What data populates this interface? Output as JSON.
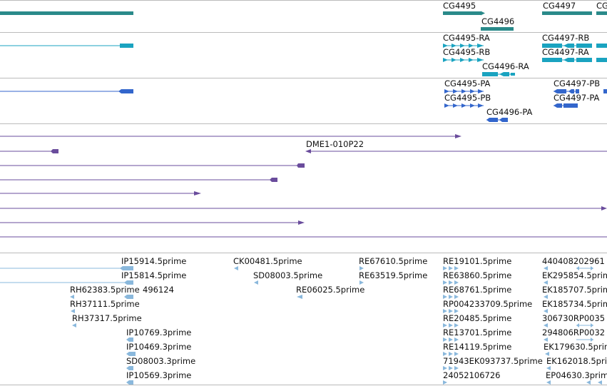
{
  "colors": {
    "gene": "#2a8a8a",
    "transcript": "#1aa3c0",
    "protein": "#3366cc",
    "clone": "#6a4c9c",
    "est": "#8ab8dc",
    "separator": "#bbbbbb"
  },
  "tracks": {
    "genes": {
      "features": [
        {
          "label": "CG4495"
        },
        {
          "label": "CG4496"
        },
        {
          "label": "CG4497"
        },
        {
          "label": "CG"
        }
      ]
    },
    "transcripts": {
      "features": [
        {
          "label": "CG4495-RA"
        },
        {
          "label": "CG4495-RB"
        },
        {
          "label": "CG4496-RA"
        },
        {
          "label": "CG4497-RB"
        },
        {
          "label": "CG4497-RA"
        }
      ]
    },
    "proteins": {
      "features": [
        {
          "label": "CG4495-PA"
        },
        {
          "label": "CG4495-PB"
        },
        {
          "label": "CG4496-PA"
        },
        {
          "label": "CG4497-PB"
        },
        {
          "label": "CG4497-PA"
        }
      ]
    },
    "clones": {
      "features": [
        {
          "label": "DME1-010P22"
        }
      ]
    },
    "ests": {
      "features": [
        {
          "label": "IP15914.5prime"
        },
        {
          "label": "CK00481.5prime"
        },
        {
          "label": "RE67610.5prime"
        },
        {
          "label": "RE19101.5prime"
        },
        {
          "label": "440408202961"
        },
        {
          "label": "IP15814.5prime"
        },
        {
          "label": "SD08003.5prime"
        },
        {
          "label": "RE63519.5prime"
        },
        {
          "label": "RE63860.5prime"
        },
        {
          "label": "EK295854.5prime"
        },
        {
          "label": "RH62383.5prime"
        },
        {
          "label": "496124"
        },
        {
          "label": "RE06025.5prime"
        },
        {
          "label": "RE68761.5prime"
        },
        {
          "label": "EK185707.5prime"
        },
        {
          "label": "RH37111.5prime"
        },
        {
          "label": "RP004233709.5prime"
        },
        {
          "label": "EK185734.5prime"
        },
        {
          "label": "RH37317.5prime"
        },
        {
          "label": "RE20485.5prime"
        },
        {
          "label": "306730RP0035"
        },
        {
          "label": "IP10769.3prime"
        },
        {
          "label": "RE13701.5prime"
        },
        {
          "label": "294806RP0032"
        },
        {
          "label": "IP10469.3prime"
        },
        {
          "label": "RE14119.5prime"
        },
        {
          "label": "EK179630.5prime"
        },
        {
          "label": "SD08003.3prime"
        },
        {
          "label": "71943EK093737.5prime"
        },
        {
          "label": "EK162018.5prime"
        },
        {
          "label": "IP10569.3prime"
        },
        {
          "label": "24052106726"
        },
        {
          "label": "EP04630.3prime"
        }
      ]
    }
  }
}
